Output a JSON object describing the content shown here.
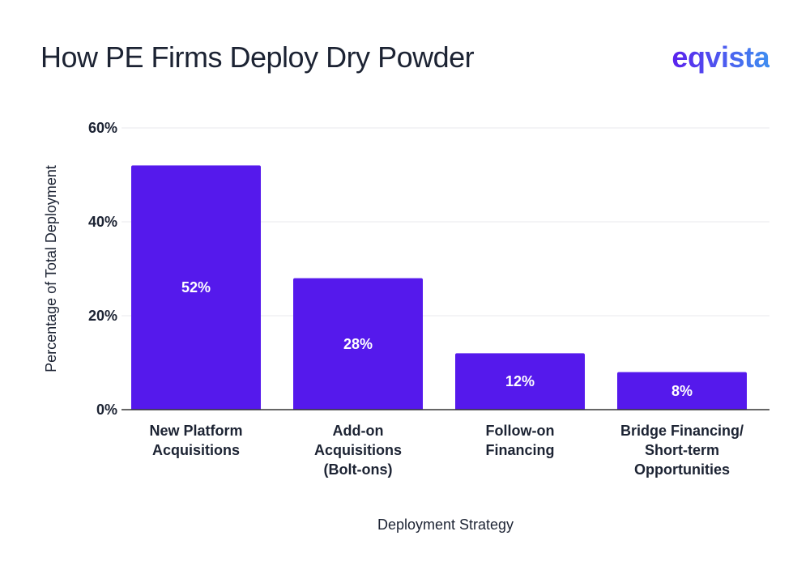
{
  "header": {
    "title": "How PE Firms Deploy Dry Powder",
    "brand": "eqvista"
  },
  "colors": {
    "bar": "#5519ec",
    "grid": "#e8e8ec",
    "axis": "#333333",
    "text": "#1c2333",
    "bar_label": "#ffffff",
    "brand_start": "#5b21ee",
    "brand_end": "#3f8ef0"
  },
  "chart_data": {
    "type": "bar",
    "title": "How PE Firms Deploy Dry Powder",
    "xlabel": "Deployment Strategy",
    "ylabel": "Percentage of Total Deployment",
    "categories": [
      [
        "New Platform",
        "Acquisitions"
      ],
      [
        "Add-on",
        "Acquisitions",
        "(Bolt-ons)"
      ],
      [
        "Follow-on",
        "Financing"
      ],
      [
        "Bridge Financing/",
        "Short-term",
        "Opportunities"
      ]
    ],
    "values": [
      52,
      28,
      12,
      8
    ],
    "value_labels": [
      "52%",
      "28%",
      "12%",
      "8%"
    ],
    "ylim": [
      0,
      60
    ],
    "yticks": [
      0,
      20,
      40,
      60
    ],
    "ytick_labels": [
      "0%",
      "20%",
      "40%",
      "60%"
    ],
    "grid": true,
    "legend": "none"
  }
}
